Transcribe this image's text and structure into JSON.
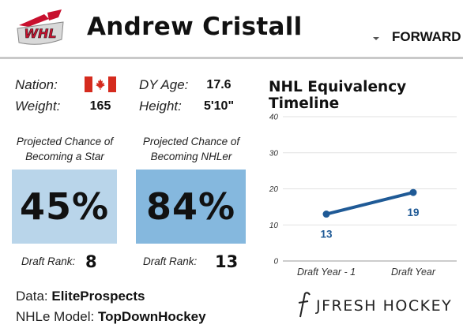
{
  "header": {
    "player_name": "Andrew Cristall",
    "position": "FORWARD",
    "logo_text": "WHL"
  },
  "bio": {
    "nation_label": "Nation:",
    "nation_flag": "canada-flag",
    "dy_age_label": "DY Age:",
    "dy_age_value": "17.6",
    "weight_label": "Weight:",
    "weight_value": "165",
    "height_label": "Height:",
    "height_value": "5'10\""
  },
  "projections": [
    {
      "title_line1": "Projected Chance of",
      "title_line2": "Becoming a Star",
      "value": "45%",
      "rank_label": "Draft Rank:",
      "rank_value": "8",
      "color": "#b9d5ea"
    },
    {
      "title_line1": "Projected Chance of",
      "title_line2": "Becoming NHLer",
      "value": "84%",
      "rank_label": "Draft Rank:",
      "rank_value": "13",
      "color": "#85b8de"
    }
  ],
  "credits": {
    "data_label": "Data:",
    "data_value": "EliteProspects",
    "model_label": "NHLe Model:",
    "model_value": "TopDownHockey",
    "brand_text": "JFRESH HOCKEY"
  },
  "colors": {
    "line": "#1f5a96",
    "grid": "#e2e2e2",
    "header_rule": "#c9c9c9"
  },
  "chart_data": {
    "type": "line",
    "title": "NHL Equivalency Timeline",
    "categories": [
      "Draft Year - 1",
      "Draft Year"
    ],
    "series": [
      {
        "values": [
          13,
          19
        ]
      }
    ],
    "data_labels": [
      "13",
      "19"
    ],
    "yticks": [
      0,
      10,
      20,
      30,
      40
    ],
    "ylim": [
      0,
      40
    ],
    "grid": true
  }
}
